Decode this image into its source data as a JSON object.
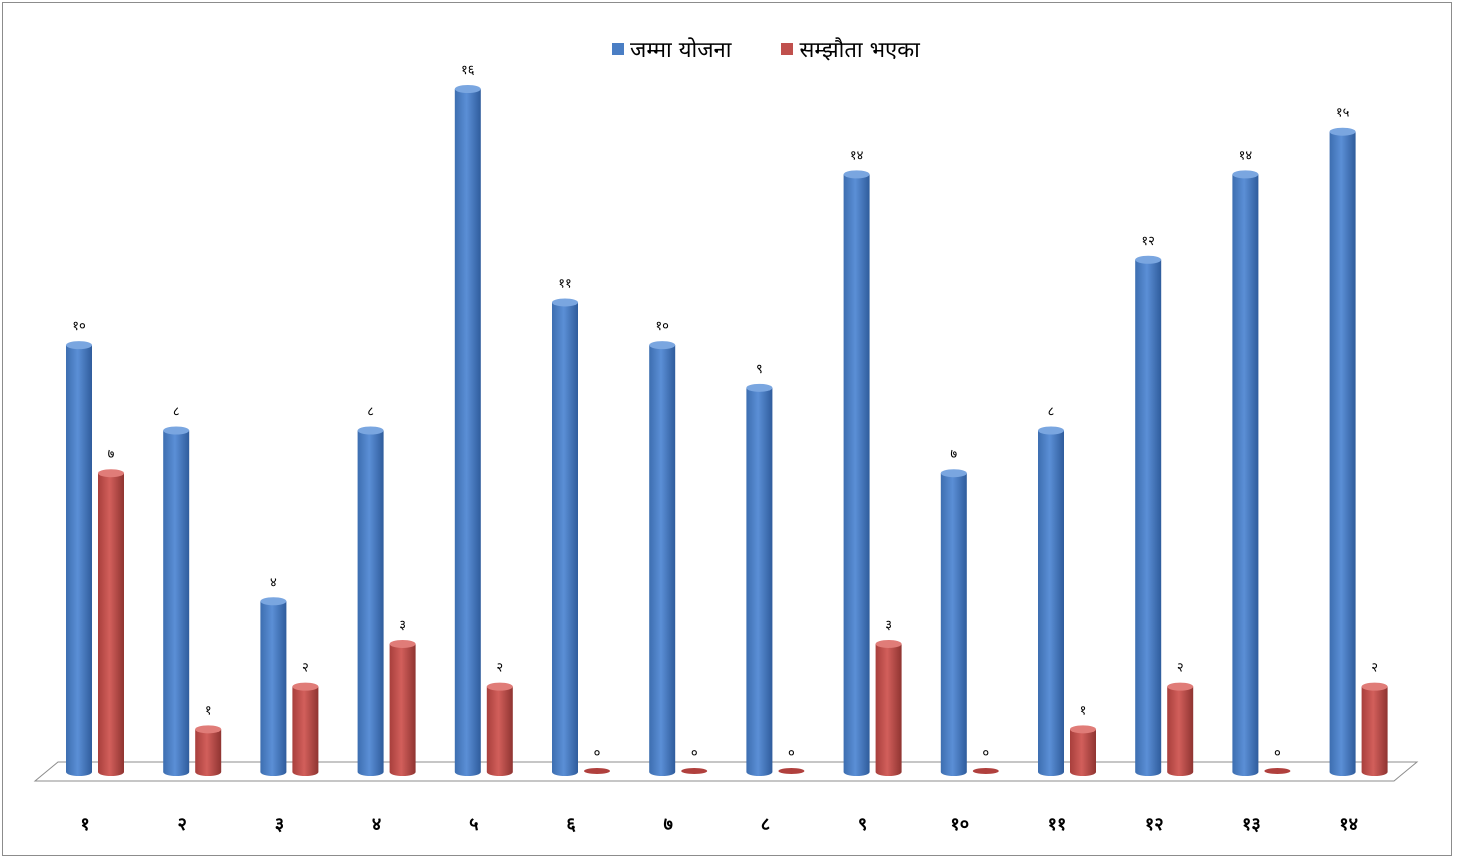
{
  "chart_data": {
    "type": "bar",
    "categories": [
      "१",
      "२",
      "३",
      "४",
      "५",
      "६",
      "७",
      "८",
      "९",
      "१०",
      "११",
      "१२",
      "१३",
      "१४"
    ],
    "series": [
      {
        "name": "जम्मा योजना",
        "color": "#4a7ec4",
        "values": [
          10,
          8,
          4,
          8,
          16,
          11,
          10,
          9,
          14,
          7,
          8,
          12,
          14,
          15
        ],
        "labels": [
          "१०",
          "८",
          "४",
          "८",
          "१६",
          "११",
          "१०",
          "९",
          "१४",
          "७",
          "८",
          "१२",
          "१४",
          "१५"
        ]
      },
      {
        "name": "सम्झौता भएका",
        "color": "#c0504d",
        "values": [
          7,
          1,
          2,
          3,
          2,
          0,
          0,
          0,
          3,
          0,
          1,
          2,
          0,
          2
        ],
        "labels": [
          "७",
          "१",
          "२",
          "३",
          "२",
          "०",
          "०",
          "०",
          "३",
          "०",
          "१",
          "२",
          "०",
          "२"
        ]
      }
    ],
    "ylim": [
      0,
      16
    ],
    "legend_position": "top-center",
    "grid": false
  }
}
